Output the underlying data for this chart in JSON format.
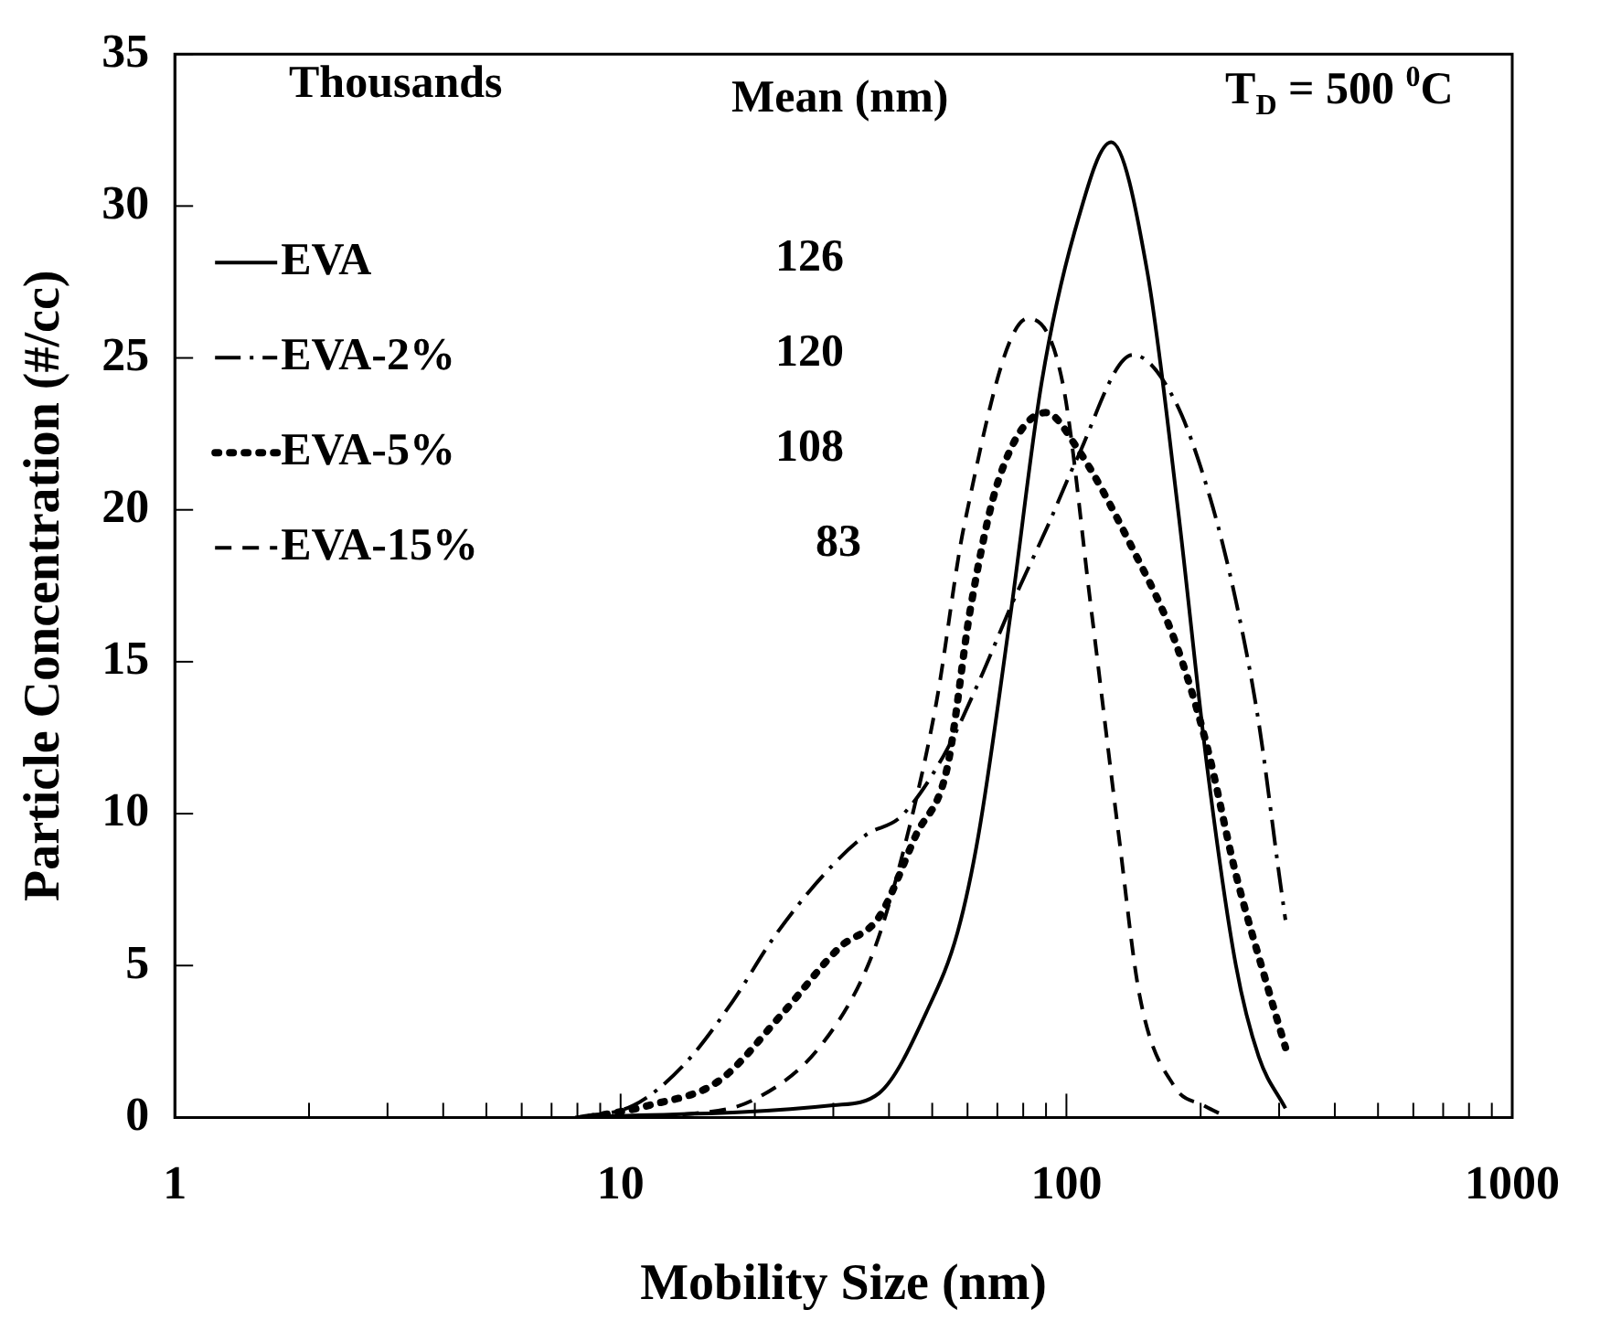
{
  "chart_data": {
    "type": "line",
    "xlabel": "Mobility Size (nm)",
    "ylabel": "Particle Concentration (#/cc)",
    "log": "x",
    "legend": "top left",
    "xlim": [
      1,
      1000
    ],
    "ylim": [
      0,
      35
    ],
    "xticks": [
      1,
      {
        "value": 2,
        "label": null
      },
      {
        "value": 3,
        "label": null
      },
      {
        "value": 4,
        "label": null
      },
      {
        "value": 5,
        "label": null
      },
      {
        "value": 6,
        "label": null
      },
      {
        "value": 7,
        "label": null
      },
      {
        "value": 8,
        "label": null
      },
      {
        "value": 9,
        "label": null
      },
      10,
      {
        "value": 20,
        "label": null
      },
      {
        "value": 30,
        "label": null
      },
      {
        "value": 40,
        "label": null
      },
      {
        "value": 50,
        "label": null
      },
      {
        "value": 60,
        "label": null
      },
      {
        "value": 70,
        "label": null
      },
      {
        "value": 80,
        "label": null
      },
      {
        "value": 90,
        "label": null
      },
      100,
      {
        "value": 200,
        "label": null
      },
      {
        "value": 300,
        "label": null
      },
      {
        "value": 400,
        "label": null
      },
      {
        "value": 500,
        "label": null
      },
      {
        "value": 600,
        "label": null
      },
      {
        "value": 700,
        "label": null
      },
      {
        "value": 800,
        "label": null
      },
      {
        "value": 900,
        "label": null
      },
      1000
    ],
    "yticks": [
      0,
      5,
      10,
      15,
      20,
      25,
      30,
      35
    ],
    "grid": false,
    "marker": "none",
    "annotations": [
      "Thousands",
      "Mean (nm)",
      "126",
      "120",
      "108",
      "83",
      "T$_{D}$ = 500 $^{0}$C"
    ],
    "series": [
      {
        "name": "EVA",
        "color": "#000000",
        "line_style": "solid",
        "x": [
          7.9,
          30,
          38,
          49,
          57,
          63.5,
          75,
          88,
          105,
          126,
          152,
          178,
          207,
          240,
          270,
          310
        ],
        "values": [
          0,
          0.4,
          0.8,
          3.6,
          6.1,
          9.3,
          16.6,
          24.2,
          29.3,
          32.1,
          27.8,
          20,
          11.5,
          5,
          2,
          0.3
        ]
      },
      {
        "name": "EVA-2%",
        "color": "#000000",
        "line_style": "dashdot",
        "x": [
          8,
          10.7,
          13.8,
          17.8,
          22,
          28.6,
          35.5,
          42.5,
          53,
          63,
          76,
          91,
          105,
          141,
          175,
          210,
          240,
          270,
          300,
          310
        ],
        "values": [
          0,
          0.4,
          1.7,
          3.8,
          5.9,
          8,
          9.3,
          9.9,
          11.9,
          14.2,
          17,
          19.5,
          21.6,
          25.1,
          23.6,
          20.4,
          17,
          13,
          8,
          6.5
        ]
      },
      {
        "name": "EVA-5%",
        "color": "#000000",
        "line_style": "dotted",
        "x": [
          8.5,
          11.6,
          16.6,
          23,
          31,
          38,
          46,
          54,
          61,
          70.5,
          90,
          105,
          141,
          175,
          206,
          240,
          280,
          310
        ],
        "values": [
          0,
          0.4,
          1.2,
          3.4,
          5.6,
          6.6,
          9.3,
          11.5,
          16.8,
          21,
          23.2,
          22.1,
          18.7,
          15.7,
          12.3,
          8,
          4.5,
          2.3
        ]
      },
      {
        "name": "EVA-15%",
        "color": "#000000",
        "line_style": "dashed",
        "x": [
          9,
          13.9,
          20,
          28.6,
          37,
          44,
          51,
          59,
          82,
          98,
          113.5,
          131,
          146,
          175,
          203,
          230
        ],
        "values": [
          0,
          0.1,
          0.6,
          2.5,
          5.5,
          9.3,
          13.6,
          19.5,
          26.3,
          24.2,
          16.8,
          9.3,
          4,
          1,
          0.4,
          0
        ]
      }
    ]
  }
}
